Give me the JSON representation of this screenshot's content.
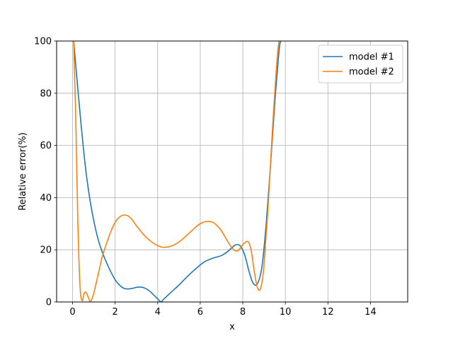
{
  "chart_data": {
    "type": "line",
    "xlabel": "x",
    "ylabel": "Relative error(%)",
    "xlim": [
      -0.75,
      15.75
    ],
    "ylim": [
      0,
      100
    ],
    "xticks": [
      0,
      2,
      4,
      6,
      8,
      10,
      12,
      14
    ],
    "yticks": [
      0,
      20,
      40,
      60,
      80,
      100
    ],
    "grid": true,
    "legend_position": "top-right",
    "series": [
      {
        "name": "model #1",
        "color": "#1f77b4",
        "x": [
          0.05,
          0.2,
          0.4,
          0.6,
          0.8,
          1.0,
          1.2,
          1.4,
          1.6,
          1.8,
          2.0,
          2.2,
          2.4,
          2.6,
          2.8,
          3.0,
          3.2,
          3.4,
          3.6,
          3.8,
          4.0,
          4.15,
          4.3,
          4.6,
          5.0,
          5.4,
          5.8,
          6.2,
          6.6,
          7.0,
          7.3,
          7.6,
          7.75,
          7.9,
          8.1,
          8.3,
          8.5,
          8.7,
          8.9,
          9.1,
          9.3,
          9.5,
          9.7,
          9.78
        ],
        "y": [
          100,
          86,
          68,
          52,
          40,
          31,
          24,
          19,
          15,
          11.5,
          8.5,
          6.5,
          5.3,
          5.0,
          5.2,
          5.6,
          5.7,
          5.3,
          4.3,
          2.8,
          1.2,
          0.1,
          1.2,
          3.5,
          6.5,
          9.8,
          12.8,
          15.4,
          16.8,
          17.8,
          19.4,
          21.6,
          22.0,
          21.3,
          17.8,
          11.5,
          7.0,
          7.2,
          13.5,
          30,
          52,
          76,
          96,
          100
        ]
      },
      {
        "name": "model #2",
        "color": "#ff7f0e",
        "x": [
          0.05,
          0.15,
          0.25,
          0.35,
          0.45,
          0.55,
          0.65,
          0.75,
          0.85,
          1.0,
          1.2,
          1.4,
          1.6,
          1.8,
          2.0,
          2.2,
          2.4,
          2.6,
          2.8,
          3.0,
          3.2,
          3.4,
          3.6,
          3.8,
          4.0,
          4.2,
          4.4,
          4.6,
          4.8,
          5.0,
          5.2,
          5.4,
          5.6,
          5.8,
          6.0,
          6.2,
          6.4,
          6.6,
          6.8,
          7.0,
          7.2,
          7.4,
          7.6,
          7.8,
          8.0,
          8.2,
          8.3,
          8.4,
          8.5,
          8.6,
          8.7,
          8.8,
          8.9,
          9.0,
          9.2,
          9.4,
          9.6,
          9.7
        ],
        "y": [
          100,
          70,
          30,
          6,
          0.5,
          3.5,
          3.5,
          1.5,
          0.2,
          3.5,
          10.5,
          17.5,
          22.5,
          27,
          30.5,
          32.5,
          33.3,
          33.0,
          31.5,
          29.2,
          27.2,
          25.3,
          23.8,
          22.5,
          21.6,
          21.0,
          21.0,
          21.3,
          22.0,
          23.0,
          24.3,
          25.8,
          27.3,
          28.8,
          30.0,
          30.7,
          30.9,
          30.5,
          29.2,
          27.2,
          24.5,
          21.8,
          19.8,
          19.8,
          22.0,
          23.2,
          22.4,
          19.5,
          14.0,
          8.8,
          5.2,
          4.6,
          7.5,
          14.5,
          38,
          67,
          92,
          100
        ]
      }
    ]
  }
}
